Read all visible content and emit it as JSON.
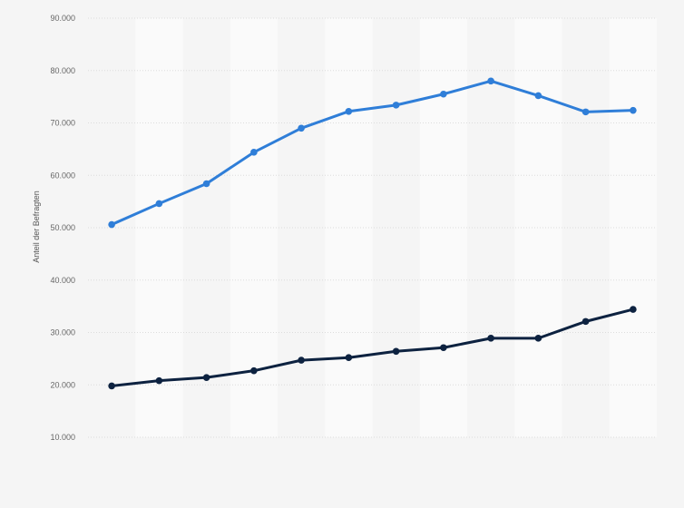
{
  "chart_data": {
    "type": "line",
    "ylabel": "Anteil der Befragten",
    "ylim": [
      10000,
      90000
    ],
    "yticks": [
      10000,
      20000,
      30000,
      40000,
      50000,
      60000,
      70000,
      80000,
      90000
    ],
    "ytick_labels": [
      "10.000",
      "20.000",
      "30.000",
      "40.000",
      "50.000",
      "60.000",
      "70.000",
      "80.000",
      "90.000"
    ],
    "x_count": 12,
    "grid": true,
    "legend": "none",
    "series": [
      {
        "color": "#2f7ed8",
        "values": [
          50600,
          54600,
          58400,
          64400,
          69000,
          72200,
          73400,
          75500,
          78000,
          75200,
          72100,
          72400
        ]
      },
      {
        "color": "#0d2240",
        "values": [
          19800,
          20800,
          21400,
          22700,
          24700,
          25200,
          26400,
          27100,
          28900,
          28900,
          32100,
          34400
        ]
      }
    ]
  }
}
